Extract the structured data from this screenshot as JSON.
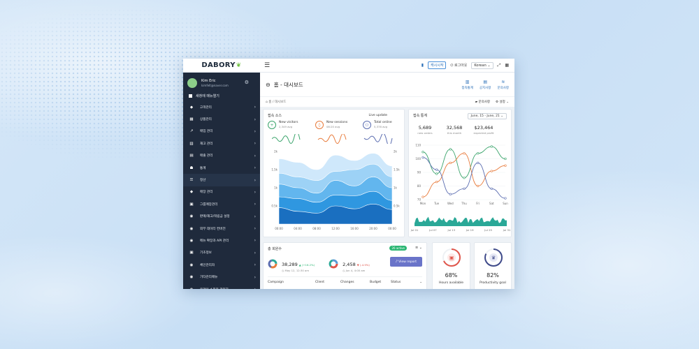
{
  "topbar": {
    "logo": "DABORY",
    "buttons": [
      "캐시시작",
      "로그아웃"
    ],
    "language": "Korean"
  },
  "sidebar": {
    "user_name": "Kim Eric",
    "user_email": "kimfelt@naver.com",
    "new_menu": "새창에 메뉴열기",
    "items": [
      {
        "label": "고객관리",
        "icon": "tag-icon"
      },
      {
        "label": "상품관리",
        "icon": "grid-icon"
      },
      {
        "label": "매입 관리",
        "icon": "trend-icon"
      },
      {
        "label": "재고 관리",
        "icon": "chart-icon"
      },
      {
        "label": "매출 관리",
        "icon": "doc-icon"
      },
      {
        "label": "통계",
        "icon": "people-icon"
      },
      {
        "label": "정산",
        "icon": "list-icon"
      },
      {
        "label": "매장 관리",
        "icon": "tag-icon"
      },
      {
        "label": "그룹매장관리",
        "icon": "store-icon"
      },
      {
        "label": "판매/재고/적립금 설정",
        "icon": "eye-icon"
      },
      {
        "label": "외부 데이터 컨버전",
        "icon": "eye-icon"
      },
      {
        "label": "메뉴 확장과 API 관리",
        "icon": "eye-icon"
      },
      {
        "label": "기초정보",
        "icon": "store-icon"
      },
      {
        "label": "체인관리자",
        "icon": "eye-icon"
      },
      {
        "label": "기타관리메뉴",
        "icon": "eye-icon"
      },
      {
        "label": "온라인 쇼핑몰 관리자",
        "icon": "eye-icon"
      }
    ]
  },
  "page": {
    "title": "홈 - 대시보드",
    "actions": [
      "접속통계",
      "공지사항",
      "문의사항"
    ],
    "breadcrumb_home": "홈",
    "breadcrumb_current": "대시보드",
    "crumb_right": [
      "문의사항",
      "설정"
    ]
  },
  "visitors_card": {
    "title": "접속 소스",
    "live": "Live update",
    "stats": [
      {
        "label": "New visitors",
        "sub": "2,349 avg",
        "color": "#3aa46b"
      },
      {
        "label": "New sessions",
        "sub": "08:20 avg",
        "color": "#e87b3c"
      },
      {
        "label": "Total online",
        "sub": "5,378 avg",
        "color": "#5b6db0"
      }
    ]
  },
  "stats_card": {
    "title": "접속 통계",
    "date_range": "June, 15 - June, 21",
    "kpis": [
      {
        "value": "5,689",
        "label": "new orders"
      },
      {
        "value": "32,568",
        "label": "this month"
      },
      {
        "value": "$23,464",
        "label": "expected profit"
      }
    ]
  },
  "members_card": {
    "title": "총 회원수",
    "badge": "26 active",
    "metrics": [
      {
        "value": "38,289",
        "change": "(+16.2%)",
        "sub": "May 12, 12:30 am"
      },
      {
        "value": "2,458",
        "change": "(-4.9%)",
        "sub": "Jun 4, 4:00 am"
      }
    ],
    "view_report": "View report",
    "columns": [
      "Campaign",
      "Client",
      "Changes",
      "Budget",
      "Status"
    ]
  },
  "gauges": [
    {
      "pct": "68%",
      "label": "Hours available",
      "value": 0.68,
      "color": "#e0554a"
    },
    {
      "pct": "82%",
      "label": "Productivity goal",
      "value": 0.82,
      "color": "#3f4a8a"
    }
  ],
  "chart_data": [
    {
      "type": "area",
      "title": "접속 소스",
      "x": [
        "00:00",
        "04:00",
        "08:00",
        "12:00",
        "16:00",
        "20:00",
        "00:00"
      ],
      "ylim": [
        0,
        2000
      ],
      "y_ticks": [
        "0.5k",
        "1k",
        "1.5k",
        "2k"
      ],
      "series": [
        {
          "values": [
            1800,
            1700,
            1500,
            1900,
            1750,
            1950,
            1600
          ]
        },
        {
          "values": [
            1400,
            1300,
            1200,
            1450,
            1500,
            1650,
            1300
          ]
        },
        {
          "values": [
            1100,
            1000,
            850,
            1200,
            1050,
            1300,
            1000
          ]
        },
        {
          "values": [
            750,
            700,
            600,
            800,
            780,
            900,
            650
          ]
        },
        {
          "values": [
            450,
            350,
            300,
            500,
            420,
            550,
            400
          ]
        }
      ]
    },
    {
      "type": "line",
      "title": "접속 통계",
      "categories": [
        "Mon",
        "Tue",
        "Wed",
        "Thu",
        "Fri",
        "Sat",
        "Sun"
      ],
      "ylim": [
        70,
        110
      ],
      "y_ticks": [
        "70",
        "80",
        "90",
        "100",
        "110"
      ],
      "series": [
        {
          "color": "#3aa46b",
          "values": [
            105,
            89,
            107,
            86,
            104,
            109,
            100
          ]
        },
        {
          "color": "#e87b3c",
          "values": [
            72,
            83,
            97,
            104,
            80,
            91,
            95
          ]
        },
        {
          "color": "#5b6db0",
          "values": [
            101,
            92,
            74,
            78,
            97,
            78,
            71
          ]
        }
      ]
    },
    {
      "type": "area",
      "x": [
        "Jul 01",
        "Jul 07",
        "Jul 13",
        "Jul 19",
        "Jul 25",
        "Jul 31"
      ],
      "color": "#2aa897"
    }
  ]
}
